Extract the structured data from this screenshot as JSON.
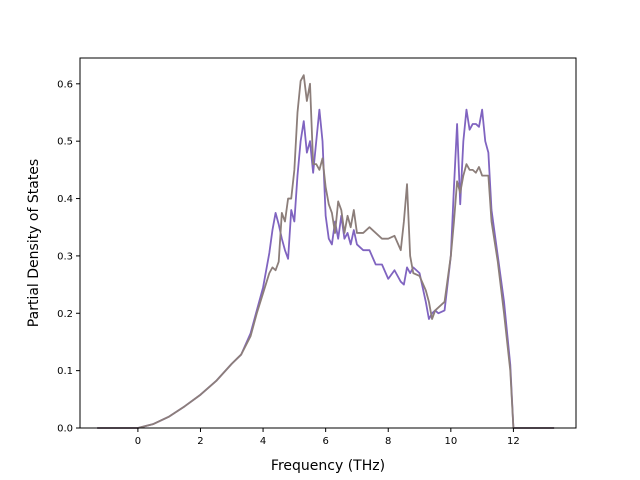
{
  "chart_data": {
    "type": "line",
    "title": "",
    "xlabel": "Frequency (THz)",
    "ylabel": "Partial Density of States",
    "xlim": [
      -1.85,
      14.0
    ],
    "ylim": [
      0.0,
      0.645
    ],
    "xticks": [
      0,
      2,
      4,
      6,
      8,
      10,
      12
    ],
    "xtick_labels": [
      "0",
      "2",
      "4",
      "6",
      "8",
      "10",
      "12"
    ],
    "yticks": [
      0.0,
      0.1,
      0.2,
      0.3,
      0.4,
      0.5,
      0.6
    ],
    "ytick_labels": [
      "0.0",
      "0.1",
      "0.2",
      "0.3",
      "0.4",
      "0.5",
      "0.6"
    ],
    "grid": false,
    "legend": "none",
    "series": [
      {
        "color": "#8064c0",
        "x": [
          -1.3,
          -0.5,
          0.0,
          0.5,
          1.0,
          1.5,
          2.0,
          2.5,
          3.0,
          3.3,
          3.6,
          3.8,
          4.0,
          4.2,
          4.3,
          4.4,
          4.5,
          4.6,
          4.7,
          4.8,
          4.9,
          5.0,
          5.1,
          5.2,
          5.3,
          5.4,
          5.5,
          5.6,
          5.7,
          5.8,
          5.9,
          6.0,
          6.1,
          6.2,
          6.3,
          6.4,
          6.5,
          6.6,
          6.7,
          6.8,
          6.9,
          7.0,
          7.2,
          7.4,
          7.6,
          7.8,
          8.0,
          8.2,
          8.4,
          8.5,
          8.6,
          8.7,
          8.8,
          9.0,
          9.2,
          9.3,
          9.4,
          9.5,
          9.6,
          9.8,
          10.0,
          10.1,
          10.2,
          10.3,
          10.4,
          10.5,
          10.6,
          10.7,
          10.8,
          10.9,
          11.0,
          11.1,
          11.2,
          11.3,
          11.5,
          11.7,
          11.9,
          12.0,
          12.1,
          12.5,
          13.3
        ],
        "y": [
          0.0,
          0.0,
          0.0,
          0.007,
          0.02,
          0.038,
          0.058,
          0.082,
          0.112,
          0.128,
          0.165,
          0.205,
          0.245,
          0.305,
          0.345,
          0.375,
          0.355,
          0.33,
          0.31,
          0.295,
          0.38,
          0.36,
          0.44,
          0.5,
          0.535,
          0.48,
          0.5,
          0.445,
          0.5,
          0.555,
          0.5,
          0.37,
          0.33,
          0.32,
          0.36,
          0.33,
          0.37,
          0.33,
          0.34,
          0.32,
          0.345,
          0.32,
          0.31,
          0.31,
          0.285,
          0.285,
          0.26,
          0.275,
          0.255,
          0.25,
          0.28,
          0.27,
          0.28,
          0.27,
          0.22,
          0.19,
          0.2,
          0.205,
          0.2,
          0.205,
          0.3,
          0.42,
          0.53,
          0.39,
          0.5,
          0.555,
          0.52,
          0.53,
          0.53,
          0.525,
          0.555,
          0.5,
          0.48,
          0.38,
          0.3,
          0.22,
          0.11,
          0.0,
          0.0,
          0.0,
          0.0
        ]
      },
      {
        "color": "#8c7e7a",
        "x": [
          -1.3,
          -0.5,
          0.0,
          0.5,
          1.0,
          1.5,
          2.0,
          2.5,
          3.0,
          3.3,
          3.6,
          3.8,
          4.0,
          4.2,
          4.3,
          4.4,
          4.5,
          4.6,
          4.7,
          4.8,
          4.9,
          5.0,
          5.1,
          5.2,
          5.3,
          5.4,
          5.5,
          5.6,
          5.7,
          5.8,
          5.9,
          6.0,
          6.1,
          6.2,
          6.3,
          6.4,
          6.5,
          6.6,
          6.7,
          6.8,
          6.9,
          7.0,
          7.2,
          7.4,
          7.6,
          7.8,
          8.0,
          8.2,
          8.4,
          8.5,
          8.6,
          8.7,
          8.8,
          9.0,
          9.2,
          9.3,
          9.4,
          9.5,
          9.6,
          9.8,
          10.0,
          10.1,
          10.2,
          10.3,
          10.4,
          10.5,
          10.6,
          10.7,
          10.8,
          10.9,
          11.0,
          11.1,
          11.2,
          11.3,
          11.5,
          11.7,
          11.9,
          12.0,
          12.1,
          12.5,
          13.3
        ],
        "y": [
          0.0,
          0.0,
          0.0,
          0.007,
          0.02,
          0.038,
          0.058,
          0.082,
          0.112,
          0.128,
          0.16,
          0.2,
          0.235,
          0.27,
          0.28,
          0.275,
          0.29,
          0.375,
          0.36,
          0.4,
          0.4,
          0.45,
          0.55,
          0.605,
          0.615,
          0.57,
          0.6,
          0.46,
          0.46,
          0.45,
          0.47,
          0.42,
          0.39,
          0.375,
          0.34,
          0.395,
          0.38,
          0.34,
          0.37,
          0.35,
          0.38,
          0.34,
          0.34,
          0.35,
          0.34,
          0.33,
          0.33,
          0.335,
          0.31,
          0.36,
          0.425,
          0.3,
          0.27,
          0.265,
          0.24,
          0.22,
          0.19,
          0.205,
          0.21,
          0.22,
          0.3,
          0.36,
          0.43,
          0.41,
          0.44,
          0.46,
          0.45,
          0.45,
          0.445,
          0.455,
          0.44,
          0.44,
          0.44,
          0.36,
          0.29,
          0.2,
          0.1,
          0.0,
          0.0,
          0.0,
          0.0
        ]
      }
    ]
  }
}
